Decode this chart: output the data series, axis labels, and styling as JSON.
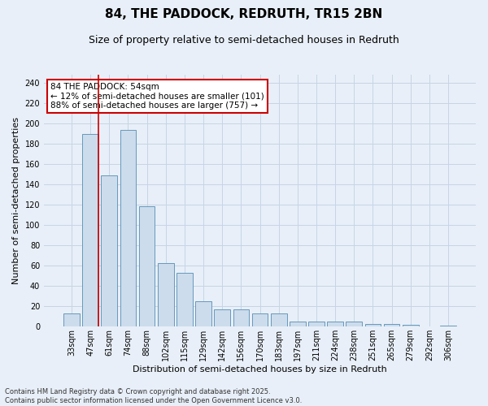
{
  "title": "84, THE PADDOCK, REDRUTH, TR15 2BN",
  "subtitle": "Size of property relative to semi-detached houses in Redruth",
  "xlabel": "Distribution of semi-detached houses by size in Redruth",
  "ylabel": "Number of semi-detached properties",
  "categories": [
    "33sqm",
    "47sqm",
    "61sqm",
    "74sqm",
    "88sqm",
    "102sqm",
    "115sqm",
    "129sqm",
    "142sqm",
    "156sqm",
    "170sqm",
    "183sqm",
    "197sqm",
    "211sqm",
    "224sqm",
    "238sqm",
    "251sqm",
    "265sqm",
    "279sqm",
    "292sqm",
    "306sqm"
  ],
  "values": [
    13,
    190,
    149,
    194,
    119,
    63,
    53,
    25,
    17,
    17,
    13,
    13,
    5,
    5,
    5,
    5,
    3,
    3,
    2,
    0,
    1
  ],
  "bar_color": "#ccdcec",
  "bar_edge_color": "#6699bb",
  "grid_color": "#c5d5e5",
  "background_color": "#e8eff8",
  "vline_x_index": 1,
  "vline_color": "#cc0000",
  "annotation_text": "84 THE PADDOCK: 54sqm\n← 12% of semi-detached houses are smaller (101)\n88% of semi-detached houses are larger (757) →",
  "annotation_box_facecolor": "#ffffff",
  "annotation_box_edgecolor": "#cc0000",
  "footer_text": "Contains HM Land Registry data © Crown copyright and database right 2025.\nContains public sector information licensed under the Open Government Licence v3.0.",
  "ylim": [
    0,
    248
  ],
  "title_fontsize": 11,
  "subtitle_fontsize": 9,
  "axis_label_fontsize": 8,
  "tick_fontsize": 7,
  "annotation_fontsize": 7.5,
  "footer_fontsize": 6
}
